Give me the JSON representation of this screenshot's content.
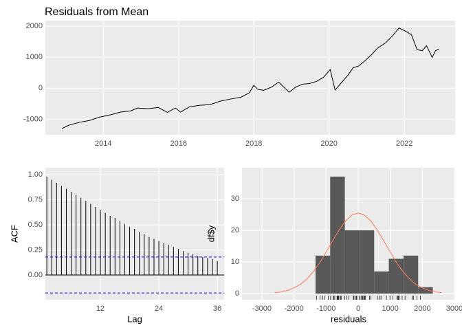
{
  "chart_data": [
    {
      "type": "line",
      "title": "Residuals from Mean",
      "color": "#000000",
      "x": [
        2012.9,
        2013.09,
        2013.36,
        2013.63,
        2013.91,
        2014.18,
        2014.46,
        2014.73,
        2014.91,
        2015.19,
        2015.46,
        2015.7,
        2015.92,
        2016.05,
        2016.29,
        2016.56,
        2016.83,
        2017.1,
        2017.38,
        2017.66,
        2017.88,
        2018.0,
        2018.11,
        2018.26,
        2018.48,
        2018.66,
        2018.79,
        2018.94,
        2019.12,
        2019.3,
        2019.48,
        2019.67,
        2019.85,
        2020.03,
        2020.16,
        2020.33,
        2020.49,
        2020.64,
        2020.78,
        2020.95,
        2021.13,
        2021.28,
        2021.5,
        2021.68,
        2021.86,
        2022.04,
        2022.19,
        2022.34,
        2022.48,
        2022.59,
        2022.74,
        2022.83,
        2022.92
      ],
      "values": [
        -1300,
        -1190,
        -1100,
        -1040,
        -930,
        -860,
        -770,
        -730,
        -640,
        -660,
        -620,
        -780,
        -640,
        -770,
        -600,
        -550,
        -530,
        -420,
        -350,
        -290,
        -150,
        90,
        -40,
        -70,
        40,
        200,
        40,
        -130,
        40,
        130,
        150,
        220,
        350,
        600,
        -60,
        180,
        400,
        660,
        710,
        880,
        1080,
        1280,
        1460,
        1680,
        1940,
        1830,
        1720,
        1240,
        1210,
        1370,
        990,
        1210,
        1260
      ],
      "xlim": [
        2012.46,
        2023.35
      ],
      "ylim": [
        -1500,
        2176
      ],
      "xticks": [
        2014,
        2016,
        2018,
        2020,
        2022
      ],
      "yticks": [
        -1000,
        0,
        1000,
        2000
      ],
      "grid": true
    },
    {
      "type": "acf",
      "xlabel": "Lag",
      "ylabel": "ACF",
      "color": "#000000",
      "ci_color": "#0000ff",
      "x": [
        1,
        2,
        3,
        4,
        5,
        6,
        7,
        8,
        9,
        10,
        11,
        12,
        13,
        14,
        15,
        16,
        17,
        18,
        19,
        20,
        21,
        22,
        23,
        24,
        25,
        26,
        27,
        28,
        29,
        30,
        31,
        32,
        33,
        34,
        35,
        36
      ],
      "values": [
        0.98,
        0.95,
        0.92,
        0.89,
        0.86,
        0.83,
        0.8,
        0.77,
        0.74,
        0.71,
        0.68,
        0.65,
        0.62,
        0.59,
        0.57,
        0.54,
        0.51,
        0.48,
        0.46,
        0.43,
        0.41,
        0.38,
        0.36,
        0.34,
        0.32,
        0.3,
        0.28,
        0.26,
        0.24,
        0.22,
        0.21,
        0.19,
        0.18,
        0.17,
        0.16,
        0.14
      ],
      "ci_lines": [
        0.179,
        -0.179
      ],
      "xlim": [
        0.7,
        37.4
      ],
      "ylim": [
        -0.247,
        1.07
      ],
      "xticks": [
        12,
        24,
        36
      ],
      "yticks": [
        {
          "value": 0,
          "label": "0.00"
        },
        {
          "value": 0.25,
          "label": "0.25"
        },
        {
          "value": 0.5,
          "label": "0.50"
        },
        {
          "value": 0.75,
          "label": "0.75"
        },
        {
          "value": 1,
          "label": "1.00"
        }
      ],
      "grid": true
    },
    {
      "type": "histogram",
      "xlabel": "residuals",
      "ylabel": "df$y",
      "color": "#595959",
      "curve_color": "#fc7e51",
      "bins": [
        -1330,
        -873,
        -416,
        41,
        498,
        955,
        1412,
        1869,
        2326
      ],
      "values": [
        12,
        37,
        20,
        20,
        7,
        11,
        12,
        2
      ],
      "curve_x": [
        -2600,
        -2400,
        -2200,
        -2000,
        -1800,
        -1600,
        -1400,
        -1200,
        -1000,
        -800,
        -600,
        -400,
        -200,
        0,
        200,
        400,
        600,
        800,
        1000,
        1200,
        1400,
        1600,
        1800,
        2000,
        2200,
        2400,
        2600
      ],
      "curve_values": [
        0.3,
        0.5,
        1.0,
        1.8,
        2.9,
        4.6,
        6.9,
        9.7,
        13.1,
        16.6,
        20.0,
        22.9,
        24.8,
        25.5,
        24.8,
        22.9,
        20.0,
        16.6,
        13.1,
        9.7,
        6.9,
        4.6,
        2.9,
        1.8,
        1.0,
        0.5,
        0.3
      ],
      "xlim": [
        -3621,
        3021
      ],
      "ylim": [
        -1.96,
        39.8
      ],
      "xticks": [
        -3000,
        -2000,
        -1000,
        0,
        1000,
        2000,
        3000
      ],
      "yticks": [
        0,
        10,
        20,
        30
      ],
      "grid": true
    }
  ]
}
